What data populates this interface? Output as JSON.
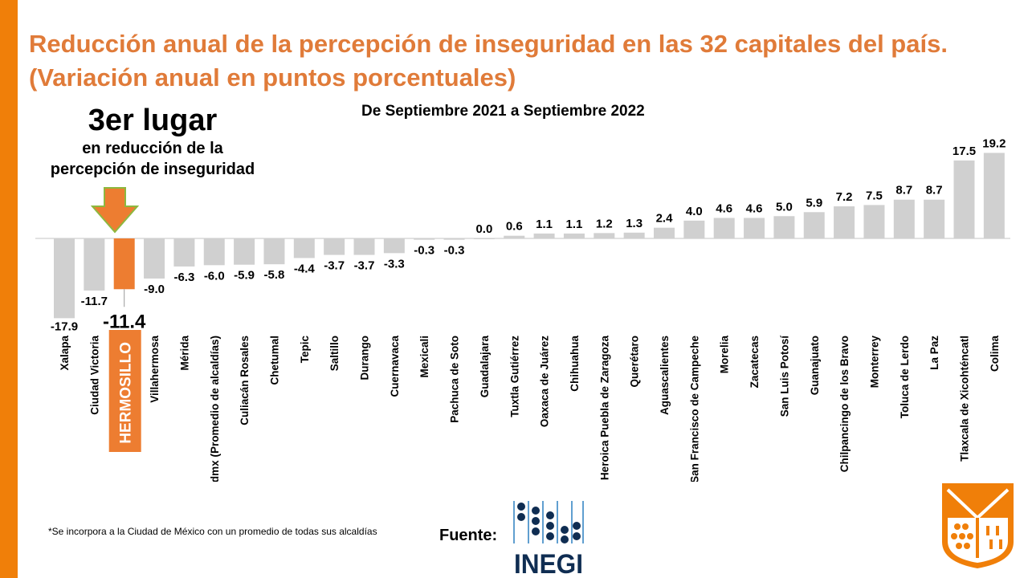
{
  "title": "Reducción anual de la percepción de inseguridad en las 32 capitales del país. (Variación anual en puntos porcentuales)",
  "rank": {
    "headline": "3er lugar",
    "line1": "en reducción de la",
    "line2": "percepción de inseguridad"
  },
  "footnote": "*Se incorpora a la Ciudad de México con un promedio de todas sus alcaldías",
  "source_label": "Fuente:",
  "source_logo_text": "INEGI",
  "colors": {
    "accent": "#F07F09",
    "highlight_bar": "#ED7D31",
    "bar": "#D0D0D0",
    "title": "#E07B39",
    "inegi": "#0F2D52"
  },
  "chart_data": {
    "type": "bar",
    "title": "",
    "subtitle": "De Septiembre 2021 a Septiembre 2022",
    "highlight": "HERMOSILLO",
    "categories": [
      "Xalapa",
      "Ciudad Victoria",
      "HERMOSILLO",
      "Villahermosa",
      "Mérida",
      "Cdmx (Promedio de alcaldías)",
      "Culiacán Rosales",
      "Chetumal",
      "Tepic",
      "Saltillo",
      "Durango",
      "Cuernavaca",
      "Mexicali",
      "Pachuca de Soto",
      "Guadalajara",
      "Tuxtla Gutiérrez",
      "Oaxaca de Juárez",
      "Chihuahua",
      "Heroica Puebla de Zaragoza",
      "Querétaro",
      "Aguascalientes",
      "San Francisco de Campeche",
      "Morelia",
      "Zacatecas",
      "San Luis Potosí",
      "Guanajuato",
      "Chilpancingo de los Bravo",
      "Monterrey",
      "Toluca de Lerdo",
      "La Paz",
      "Tlaxcala de Xicohténcatl",
      "Colima"
    ],
    "values": [
      -17.9,
      -11.7,
      -11.4,
      -9.0,
      -6.3,
      -6.0,
      -5.9,
      -5.8,
      -4.4,
      -3.7,
      -3.7,
      -3.3,
      -0.3,
      -0.3,
      0.0,
      0.6,
      1.1,
      1.1,
      1.2,
      1.3,
      2.4,
      4.0,
      4.6,
      4.6,
      5.0,
      5.9,
      7.2,
      7.5,
      8.7,
      8.7,
      17.5,
      19.2
    ],
    "labels": [
      "-17.9",
      "-11.7",
      "-11.4",
      "-9.0",
      "-6.3",
      "-6.0",
      "-5.9",
      "-5.8",
      "-4.4",
      "-3.7",
      "-3.7",
      "-3.3",
      "-0.3",
      "-0.3",
      "0.0",
      "0.6",
      "1.1",
      "1.1",
      "1.2",
      "1.3",
      "2.4",
      "4.0",
      "4.6",
      "4.6",
      "5.0",
      "5.9",
      "7.2",
      "7.5",
      "8.7",
      "8.7",
      "17.5",
      "19.2"
    ],
    "grid": false
  }
}
